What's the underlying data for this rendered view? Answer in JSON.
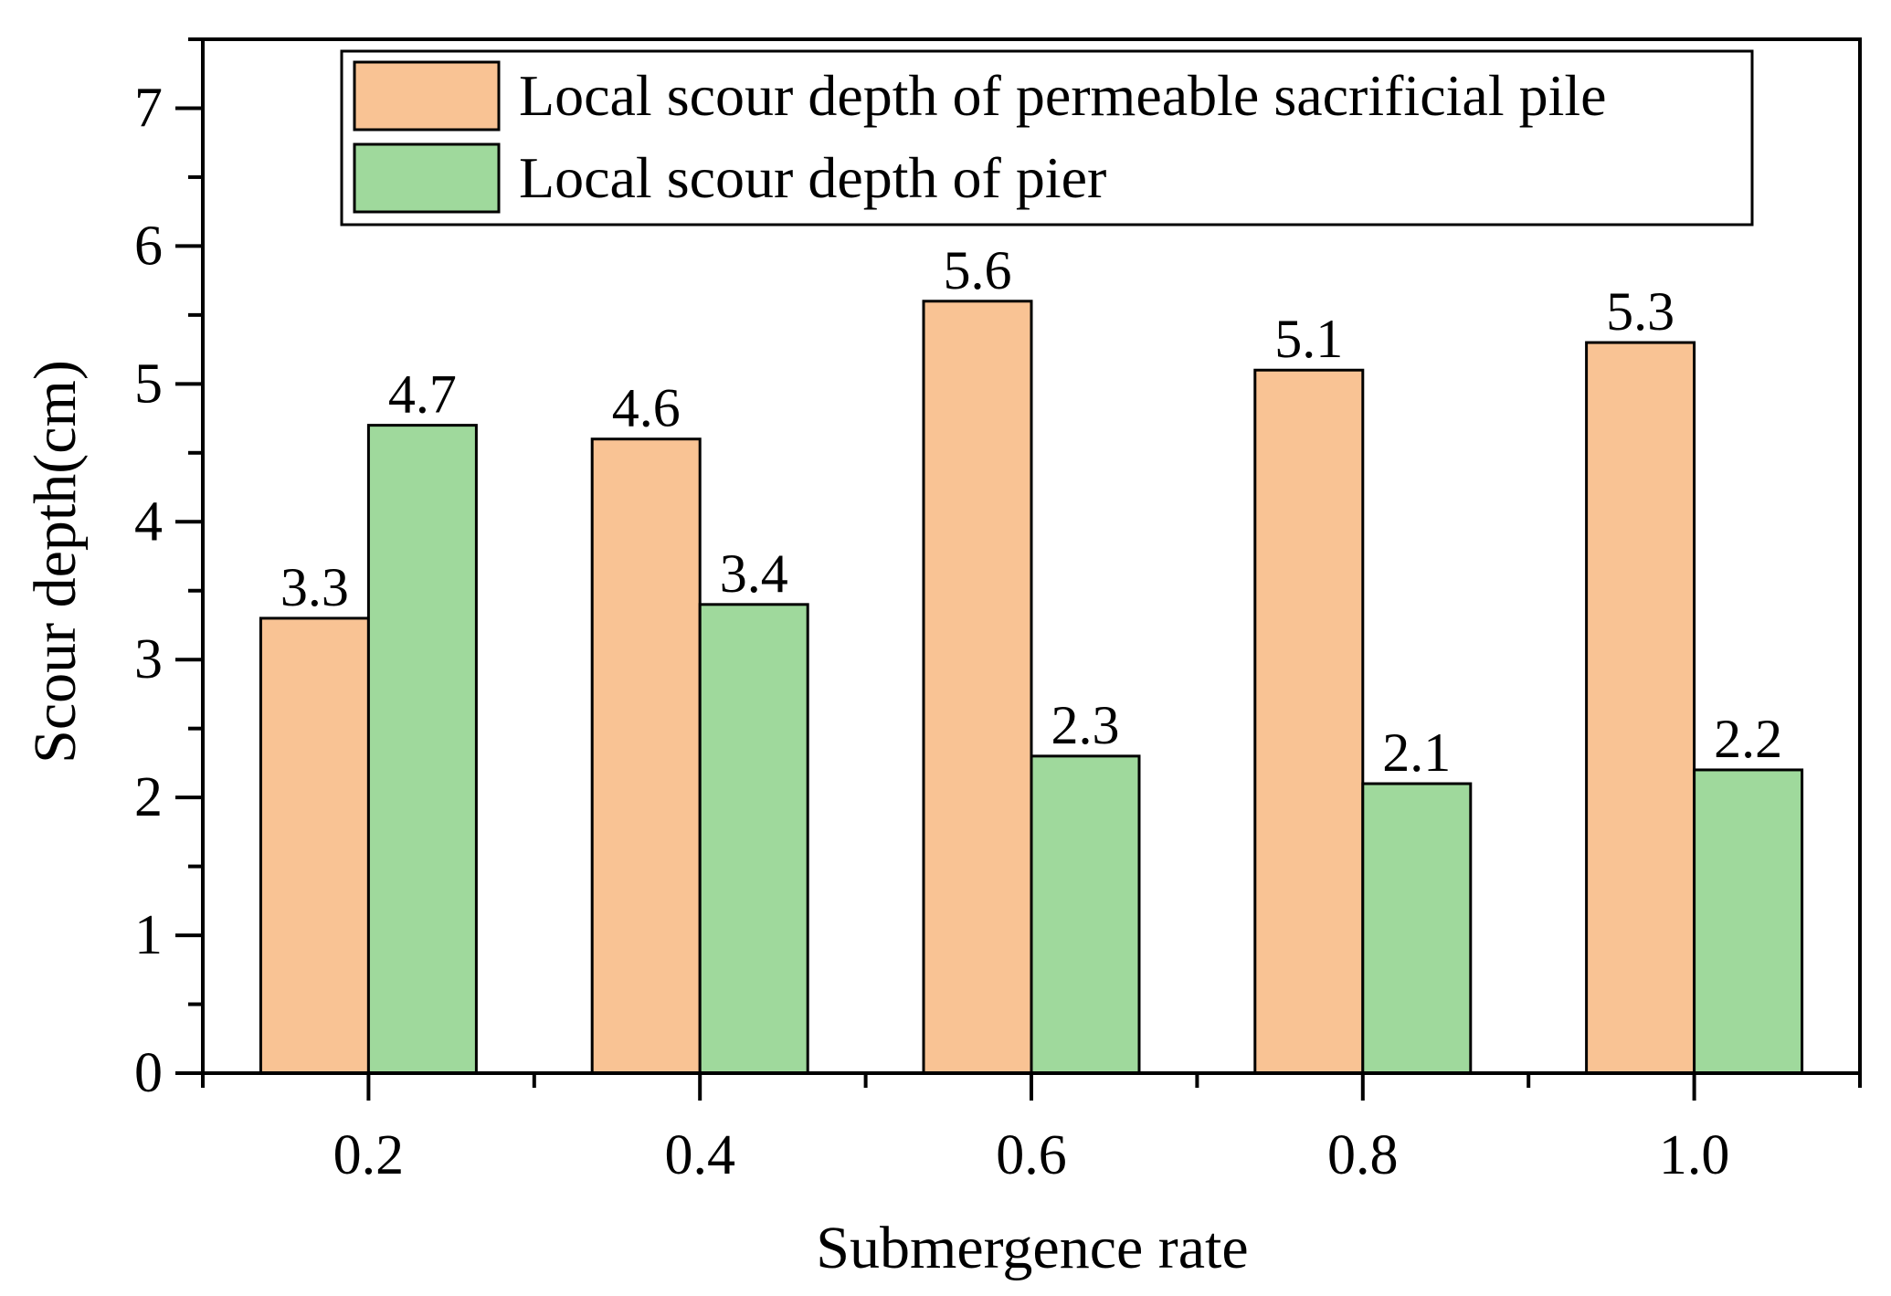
{
  "chart_data": {
    "type": "bar",
    "title": "",
    "xlabel": "Submergence rate",
    "ylabel": "Scour depth(cm)",
    "categories": [
      "0.2",
      "0.4",
      "0.6",
      "0.8",
      "1.0"
    ],
    "ylim": [
      0,
      7.5
    ],
    "yticks": [
      0,
      1,
      2,
      3,
      4,
      5,
      6,
      7
    ],
    "ytick_labels": [
      "0",
      "1",
      "2",
      "3",
      "4",
      "5",
      "6",
      "7"
    ],
    "legend_position": "top",
    "grid": false,
    "series": [
      {
        "name": "Local scour depth of permeable sacrificial pile",
        "color": "#F9C394",
        "values": [
          3.3,
          4.6,
          5.6,
          5.1,
          5.3
        ],
        "labels": [
          "3.3",
          "4.6",
          "5.6",
          "5.1",
          "5.3"
        ]
      },
      {
        "name": "Local scour depth of pier",
        "color": "#9FD99C",
        "values": [
          4.7,
          3.4,
          2.3,
          2.1,
          2.2
        ],
        "labels": [
          "4.7",
          "3.4",
          "2.3",
          "2.1",
          "2.2"
        ]
      }
    ]
  }
}
